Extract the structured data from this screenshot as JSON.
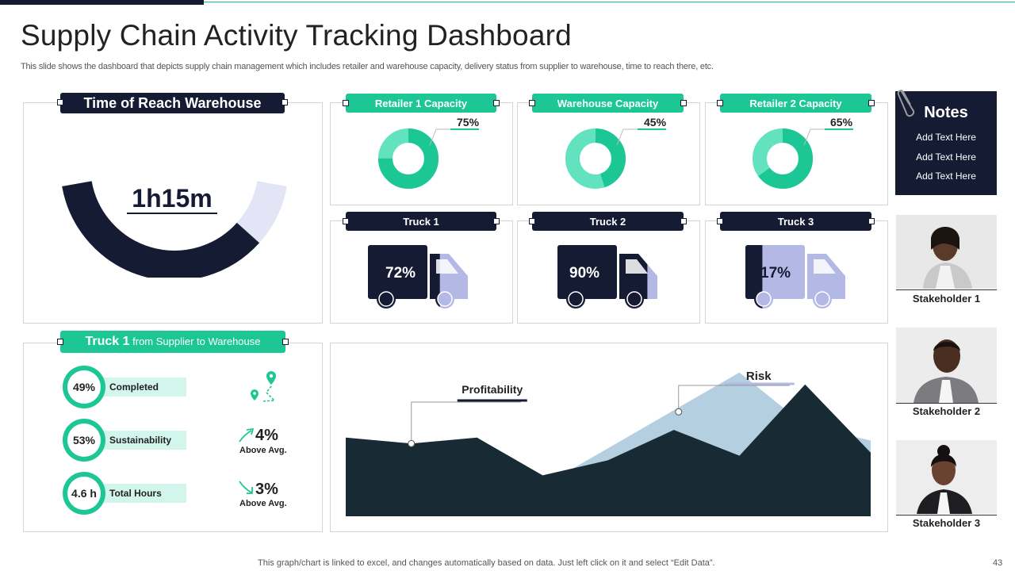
{
  "header": {
    "title": "Supply Chain Activity Tracking Dashboard",
    "subtitle": "This slide shows the dashboard that depicts supply chain management which includes retailer and warehouse capacity, delivery status from supplier to warehouse, time to reach there, etc."
  },
  "time_of_reach": {
    "label": "Time of Reach Warehouse",
    "value": "1h15m",
    "gauge_fraction": 0.8
  },
  "capacities": [
    {
      "label": "Retailer 1 Capacity",
      "value_text": "75%",
      "value": 75
    },
    {
      "label": "Warehouse Capacity",
      "value_text": "45%",
      "value": 45
    },
    {
      "label": "Retailer 2 Capacity",
      "value_text": "65%",
      "value": 65
    }
  ],
  "trucks": [
    {
      "label": "Truck 1",
      "value_text": "72%",
      "value": 72
    },
    {
      "label": "Truck 2",
      "value_text": "90%",
      "value": 90
    },
    {
      "label": "Truck 3",
      "value_text": "17%",
      "value": 17
    }
  ],
  "truck_route": {
    "label_bold": "Truck 1",
    "label_rest": " from Supplier to Warehouse",
    "stats": [
      {
        "value": "49%",
        "label": "Completed"
      },
      {
        "value": "53%",
        "label": "Sustainability"
      },
      {
        "value": "4.6 h",
        "label": "Total Hours"
      }
    ],
    "trends": [
      {
        "value": "4%",
        "label": "Above Avg.",
        "direction": "up"
      },
      {
        "value": "3%",
        "label": "Above Avg.",
        "direction": "down"
      }
    ]
  },
  "chart_data": {
    "type": "area",
    "title": "",
    "xlabel": "",
    "ylabel": "",
    "x": [
      1,
      2,
      3,
      4,
      5,
      6,
      7,
      8,
      9
    ],
    "ylim": [
      0,
      100
    ],
    "series": [
      {
        "name": "Profitability",
        "values": [
          52,
          48,
          52,
          27,
          37,
          57,
          40,
          87,
          42
        ]
      },
      {
        "name": "Risk",
        "values": [
          30,
          28,
          25,
          20,
          45,
          70,
          95,
          60,
          50
        ]
      }
    ],
    "annotations": [
      {
        "text": "Profitability",
        "series": "Profitability",
        "x": 2
      },
      {
        "text": "Risk",
        "series": "Risk",
        "x": 6
      }
    ]
  },
  "notes": {
    "title": "Notes",
    "items": [
      "Add Text Here",
      "Add Text Here",
      "Add Text Here"
    ]
  },
  "stakeholders": [
    "Stakeholder 1",
    "Stakeholder 2",
    "Stakeholder 3"
  ],
  "footer": {
    "text": "This graph/chart is linked to excel,  and changes automatically based on data. Just left click on it and select “Edit Data”.",
    "page": "43"
  },
  "colors": {
    "navy": "#141b33",
    "green": "#1dc795",
    "light_green": "#d2f6ec",
    "lavender": "#b4b8e4",
    "pale_lavender": "#e3e4f6",
    "chart_dark": "#182a33",
    "chart_light": "#b3cfe0"
  }
}
